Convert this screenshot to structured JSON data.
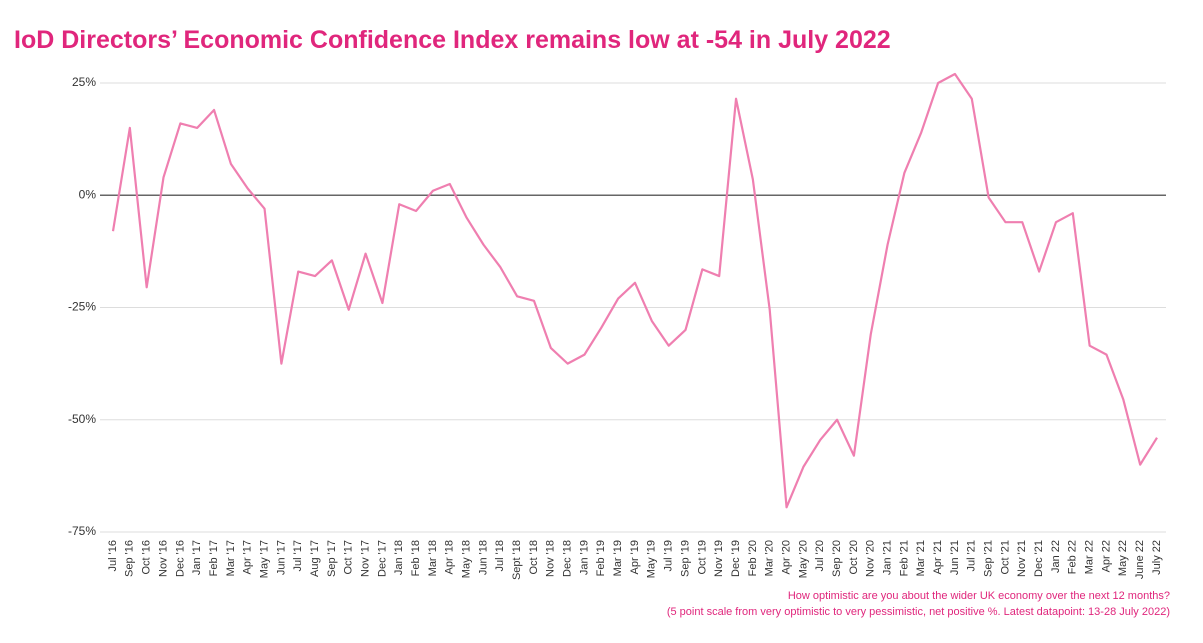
{
  "chart_data": {
    "type": "line",
    "title": "IoD Directors’ Economic Confidence Index remains low at -54 in July 2022",
    "notes": [
      "How optimistic are you about the wider UK economy over the next 12 months?",
      "(5 point scale from very optimistic to very pessimistic, net positive %. Latest datapoint: 13-28 July 2022)"
    ],
    "categories": [
      "Jul '16",
      "Sep '16",
      "Oct '16",
      "Nov '16",
      "Dec '16",
      "Jan '17",
      "Feb '17",
      "Mar '17",
      "Apr '17",
      "May '17",
      "Jun '17",
      "Jul '17",
      "Aug '17",
      "Sep '17",
      "Oct '17",
      "Nov '17",
      "Dec '17",
      "Jan '18",
      "Feb '18",
      "Mar '18",
      "Apr '18",
      "May '18",
      "Jun '18",
      "Jul '18",
      "Sept '18",
      "Oct '18",
      "Nov '18",
      "Dec '18",
      "Jan '19",
      "Feb '19",
      "Mar '19",
      "Apr '19",
      "May '19",
      "Jul '19",
      "Sep '19",
      "Oct '19",
      "Nov '19",
      "Dec '19",
      "Feb '20",
      "Mar '20",
      "Apr '20",
      "May '20",
      "Jul '20",
      "Sep '20",
      "Oct '20",
      "Nov '20",
      "Jan '21",
      "Feb '21",
      "Mar '21",
      "Apr '21",
      "Jun '21",
      "Jul '21",
      "Sep '21",
      "Oct '21",
      "Nov '21",
      "Dec '21",
      "Jan 22",
      "Feb 22",
      "Mar 22",
      "Apr 22",
      "May 22",
      "June 22",
      "July 22"
    ],
    "series": [
      {
        "name": "Economic Confidence Index",
        "color": "#ef7fb0",
        "values": [
          -8,
          15,
          -20.5,
          4,
          16,
          15,
          19,
          7,
          1.5,
          -3,
          -37.5,
          -17,
          -18,
          -14.5,
          -25.5,
          -13,
          -24,
          -2,
          -3.5,
          1,
          2.5,
          -5,
          -11,
          -16,
          -22.5,
          -23.5,
          -34,
          -37.5,
          -35.5,
          -29.5,
          -23,
          -19.5,
          -28,
          -33.5,
          -30,
          -16.5,
          -18,
          21.5,
          3.5,
          -25.5,
          -69.5,
          -60.5,
          -54.5,
          -50,
          -58,
          -31,
          -11,
          5,
          14,
          25,
          27,
          21.5,
          -0.5,
          -6,
          -6,
          -17,
          -6,
          -4,
          -33.5,
          -35.5,
          -45.5,
          -60,
          -54
        ]
      }
    ],
    "ylim": [
      -75,
      25
    ],
    "yticks": [
      {
        "value": -75,
        "label": "-75%"
      },
      {
        "value": -50,
        "label": "-50%"
      },
      {
        "value": -25,
        "label": "-25%"
      },
      {
        "value": 0,
        "label": "0%"
      },
      {
        "value": 25,
        "label": "25%"
      }
    ],
    "grid": true
  }
}
